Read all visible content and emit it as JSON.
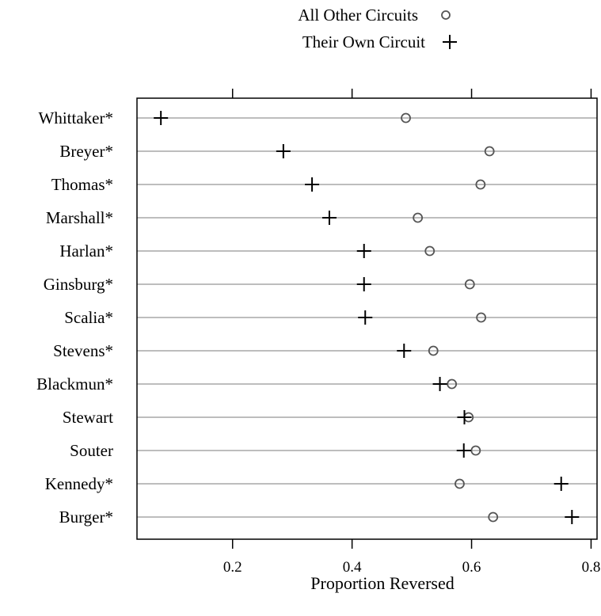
{
  "chart_data": {
    "type": "scatter",
    "xlabel": "Proportion Reversed",
    "xlim": [
      0.04,
      0.81
    ],
    "xticks": [
      0.2,
      0.4,
      0.6,
      0.8
    ],
    "xtick_labels": [
      "0.2",
      "0.4",
      "0.6",
      "0.8"
    ],
    "legend_position": "top",
    "grid": "horizontal row lines",
    "categories": [
      "Whittaker*",
      "Breyer*",
      "Thomas*",
      "Marshall*",
      "Harlan*",
      "Ginsburg*",
      "Scalia*",
      "Stevens*",
      "Blackmun*",
      "Stewart",
      "Souter",
      "Kennedy*",
      "Burger*"
    ],
    "series": [
      {
        "name": "All Other Circuits",
        "marker": "circle",
        "color": "#555555",
        "values": [
          0.49,
          0.63,
          0.615,
          0.51,
          0.53,
          0.597,
          0.616,
          0.536,
          0.567,
          0.595,
          0.607,
          0.58,
          0.636
        ]
      },
      {
        "name": "Their Own Circuit",
        "marker": "plus",
        "color": "#000000",
        "values": [
          0.08,
          0.285,
          0.333,
          0.362,
          0.42,
          0.42,
          0.422,
          0.487,
          0.547,
          0.588,
          0.587,
          0.75,
          0.768
        ]
      }
    ]
  }
}
